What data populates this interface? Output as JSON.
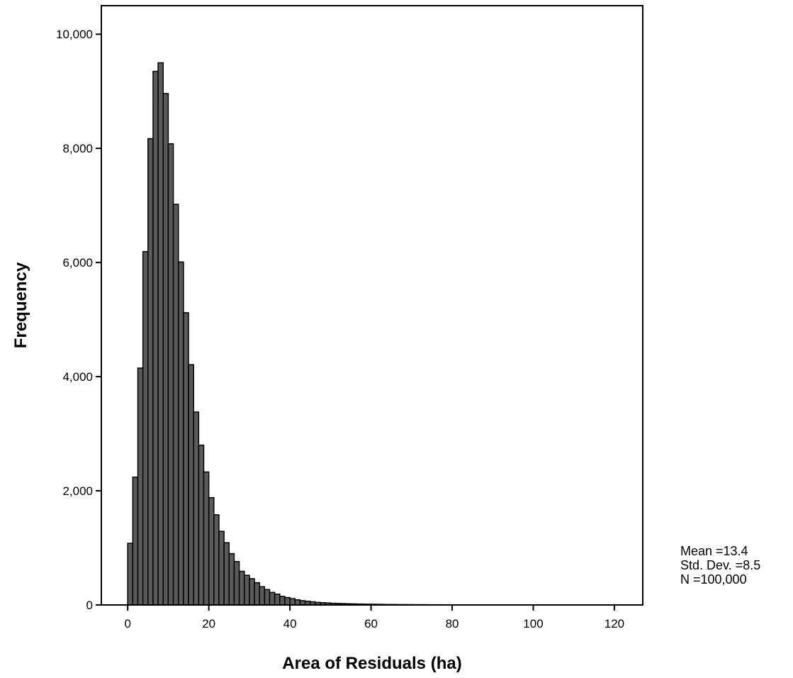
{
  "chart_data": {
    "type": "bar",
    "title": "",
    "xlabel": "Area of Residuals (ha)",
    "ylabel": "Frequency",
    "xlim": [
      -6.5,
      127
    ],
    "ylim": [
      0,
      10500
    ],
    "x_ticks": [
      0,
      20,
      40,
      60,
      80,
      100,
      120
    ],
    "x_tick_labels": [
      "0",
      "20",
      "40",
      "60",
      "80",
      "100",
      "120"
    ],
    "y_ticks": [
      0,
      2000,
      4000,
      6000,
      8000,
      10000
    ],
    "y_tick_labels": [
      "0",
      "2,000",
      "4,000",
      "6,000",
      "8,000",
      "10,000"
    ],
    "grid": false,
    "bin_width": 1.25,
    "bin_start": 0,
    "bar_color": "#5a5a5a",
    "values": [
      1080,
      2240,
      4150,
      6190,
      8170,
      9350,
      9500,
      8960,
      8080,
      7020,
      6010,
      5120,
      4210,
      3380,
      2800,
      2330,
      1880,
      1580,
      1290,
      1090,
      900,
      760,
      590,
      520,
      460,
      390,
      320,
      270,
      220,
      190,
      150,
      130,
      110,
      90,
      75,
      65,
      55,
      45,
      40,
      35,
      30,
      27,
      24,
      21,
      19,
      17,
      15,
      13,
      12,
      11,
      10,
      9,
      8,
      7,
      7,
      6,
      6,
      5,
      5,
      4,
      4,
      4,
      3,
      3,
      3,
      3,
      2,
      2,
      2,
      2,
      2,
      2,
      2,
      1,
      1,
      1,
      1,
      1,
      1,
      1,
      1,
      1,
      1,
      1,
      1,
      1,
      1,
      1,
      1,
      1,
      1,
      1,
      1,
      1,
      1,
      1,
      1
    ]
  },
  "stats": {
    "mean": "Mean =13.4",
    "std_dev": "Std. Dev. =8.5",
    "n": "N =100,000"
  }
}
